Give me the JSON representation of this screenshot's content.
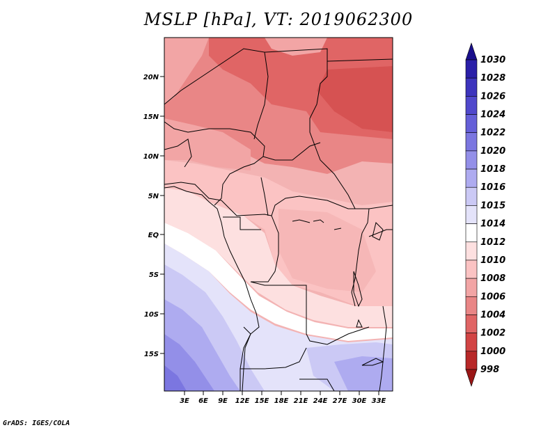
{
  "title": "MSLP [hPa], VT: 2019062300",
  "credit": "GrADS: IGES/COLA",
  "lat_labels": [
    "20N",
    "15N",
    "10N",
    "5N",
    "EQ",
    "5S",
    "10S",
    "15S"
  ],
  "lon_labels": [
    "3E",
    "6E",
    "9E",
    "12E",
    "15E",
    "18E",
    "21E",
    "24E",
    "27E",
    "30E",
    "33E"
  ],
  "colorbar": {
    "labels": [
      "1030",
      "1028",
      "1026",
      "1024",
      "1022",
      "1020",
      "1018",
      "1016",
      "1015",
      "1014",
      "1012",
      "1010",
      "1008",
      "1006",
      "1004",
      "1002",
      "1000",
      "998"
    ],
    "colors": [
      "#1a0f8c",
      "#2a1fa8",
      "#3d34bd",
      "#5048cc",
      "#655fd8",
      "#7b76e0",
      "#938fe8",
      "#aeabf0",
      "#cbc9f5",
      "#e4e3fa",
      "#ffffff",
      "#fde0e0",
      "#fbc3c3",
      "#f2a5a5",
      "#e98686",
      "#e06565",
      "#d24444",
      "#b82828",
      "#9a1616"
    ]
  }
}
